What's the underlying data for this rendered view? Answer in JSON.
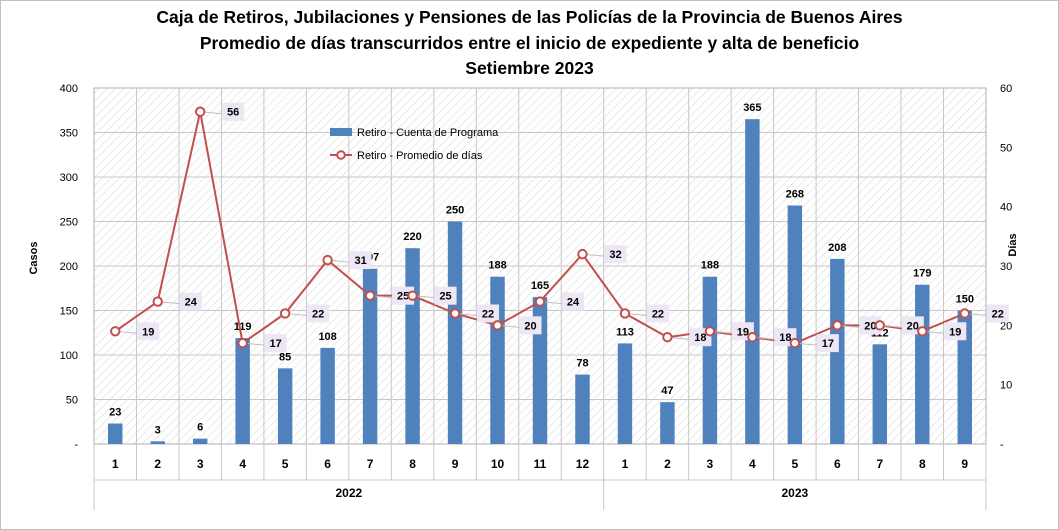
{
  "chart_data": {
    "type": "bar+line",
    "title_lines": [
      "Caja de Retiros, Jubilaciones y Pensiones de las Policías de la Provincia de Buenos Aires",
      "Promedio de días transcurridos  entre el inicio de expediente y alta de beneficio",
      "Setiembre 2023"
    ],
    "ylabel_left": "Casos",
    "ylabel_right": "Días",
    "ylim_left": [
      0,
      400
    ],
    "ylim_right": [
      0,
      60
    ],
    "yticks_left": [
      "-",
      "50",
      "100",
      "150",
      "200",
      "250",
      "300",
      "350",
      "400"
    ],
    "yticks_right": [
      "-",
      "10",
      "20",
      "30",
      "40",
      "50",
      "60"
    ],
    "categories": [
      "1",
      "2",
      "3",
      "4",
      "5",
      "6",
      "7",
      "8",
      "9",
      "10",
      "11",
      "12",
      "1",
      "2",
      "3",
      "4",
      "5",
      "6",
      "7",
      "8",
      "9"
    ],
    "groups": [
      {
        "label": "2022",
        "count": 12
      },
      {
        "label": "2023",
        "count": 9
      }
    ],
    "series": [
      {
        "name": "Retiro - Cuenta de Programa",
        "kind": "bar",
        "axis": "left",
        "color": "#4f81bd",
        "values": [
          23,
          3,
          6,
          119,
          85,
          108,
          197,
          220,
          250,
          188,
          165,
          78,
          113,
          47,
          188,
          365,
          268,
          208,
          112,
          179,
          150
        ]
      },
      {
        "name": "Retiro - Promedio de días",
        "kind": "line",
        "axis": "right",
        "color": "#c0504d",
        "values": [
          19,
          24,
          56,
          17,
          22,
          31,
          25,
          25,
          22,
          20,
          24,
          32,
          22,
          18,
          19,
          18,
          17,
          20,
          20,
          19,
          22
        ]
      }
    ],
    "grid": true,
    "legend_position": "top-center"
  }
}
